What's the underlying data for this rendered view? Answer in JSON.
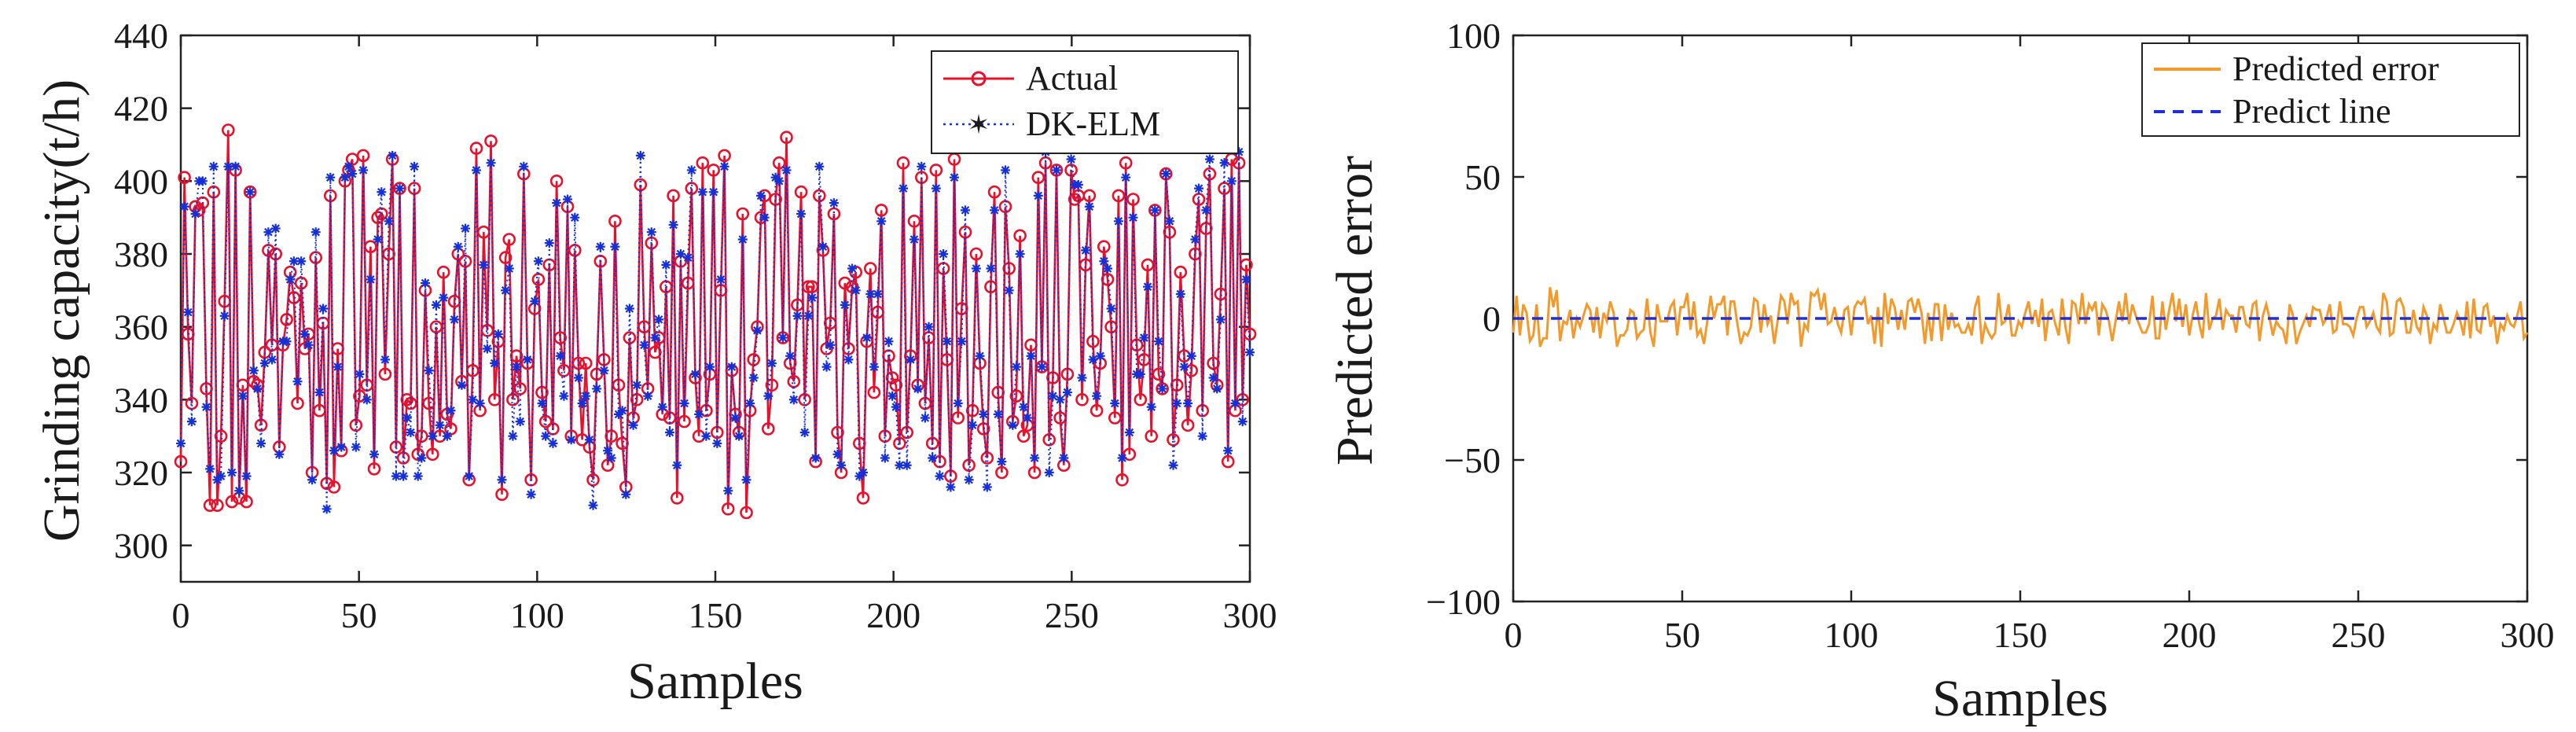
{
  "chart_data": [
    {
      "type": "line",
      "title": "",
      "xlabel": "Samples",
      "ylabel": "Grinding capacity(t/h)",
      "xlim": [
        0,
        300
      ],
      "ylim": [
        290,
        440
      ],
      "xticks": [
        0,
        50,
        100,
        150,
        200,
        250,
        300
      ],
      "yticks": [
        300,
        320,
        340,
        360,
        380,
        400,
        420,
        440
      ],
      "grid": false,
      "legend_position": "top-right",
      "series": [
        {
          "name": "Actual",
          "color": "#e8102a",
          "marker": "circle-open",
          "line": "solid",
          "values": [
            323,
            401,
            358,
            339,
            393,
            392,
            394,
            343,
            311,
            397,
            311,
            330,
            367,
            414,
            312,
            403,
            313,
            344,
            312,
            397,
            345,
            344,
            333,
            353,
            381,
            355,
            380,
            327,
            355,
            362,
            375,
            368,
            339,
            372,
            354,
            358,
            320,
            379,
            337,
            361,
            317,
            396,
            316,
            354,
            326,
            400,
            403,
            406,
            333,
            341,
            407,
            344,
            382,
            321,
            390,
            391,
            347,
            380,
            406,
            327,
            398,
            324,
            340,
            339,
            398,
            325,
            330,
            370,
            339,
            325,
            360,
            330,
            375,
            336,
            332,
            367,
            380,
            345,
            378,
            318,
            348,
            409,
            337,
            386,
            359,
            411,
            340,
            356,
            314,
            379,
            384,
            340,
            352,
            343,
            402,
            350,
            318,
            365,
            373,
            342,
            334,
            377,
            332,
            400,
            357,
            348,
            393,
            330,
            381,
            350,
            329,
            350,
            327,
            318,
            347,
            378,
            351,
            322,
            330,
            389,
            344,
            328,
            316,
            357,
            335,
            340,
            399,
            360,
            343,
            383,
            353,
            357,
            336,
            371,
            335,
            396,
            313,
            378,
            334,
            372,
            398,
            346,
            330,
            405,
            337,
            347,
            403,
            331,
            370,
            407,
            310,
            348,
            336,
            331,
            391,
            309,
            337,
            351,
            360,
            390,
            396,
            332,
            344,
            395,
            405,
            357,
            412,
            350,
            345,
            366,
            397,
            340,
            371,
            371,
            323,
            396,
            381,
            354,
            361,
            391,
            331,
            320,
            372,
            354,
            371,
            375,
            328,
            313,
            356,
            376,
            342,
            364,
            392,
            330,
            352,
            346,
            344,
            328,
            405,
            331,
            352,
            389,
            344,
            401,
            339,
            357,
            328,
            403,
            323,
            376,
            351,
            319,
            406,
            335,
            365,
            386,
            322,
            337,
            380,
            350,
            332,
            324,
            371,
            397,
            342,
            320,
            393,
            376,
            334,
            341,
            385,
            330,
            333,
            355,
            320,
            401,
            349,
            405,
            329,
            346,
            403,
            335,
            322,
            347,
            403,
            395,
            396,
            340,
            377,
            396,
            356,
            337,
            350,
            382,
            373,
            360,
            335,
            396,
            318,
            405,
            325,
            395,
            355,
            340,
            351,
            377,
            330,
            392,
            347,
            343,
            402,
            386,
            329,
            344,
            375,
            352,
            333,
            348,
            380,
            395,
            337,
            387,
            402,
            350,
            344,
            369,
            398,
            323,
            406,
            337,
            405,
            340,
            377,
            358
          ]
        },
        {
          "name": "DK-ELM",
          "color": "#1530d8",
          "marker": "star",
          "line": "dotted",
          "values": [
            328,
            393,
            364,
            334,
            391,
            400,
            400,
            338,
            321,
            404,
            318,
            319,
            363,
            404,
            320,
            404,
            315,
            341,
            319,
            397,
            348,
            343,
            328,
            350,
            386,
            351,
            387,
            325,
            356,
            356,
            373,
            378,
            345,
            378,
            358,
            355,
            318,
            386,
            342,
            365,
            310,
            401,
            326,
            349,
            327,
            401,
            404,
            402,
            327,
            347,
            403,
            340,
            373,
            325,
            384,
            397,
            351,
            389,
            407,
            319,
            398,
            319,
            335,
            331,
            404,
            319,
            324,
            372,
            348,
            330,
            366,
            333,
            368,
            330,
            337,
            362,
            382,
            344,
            387,
            319,
            340,
            403,
            339,
            377,
            354,
            405,
            350,
            358,
            318,
            370,
            376,
            330,
            349,
            334,
            404,
            351,
            314,
            367,
            378,
            339,
            330,
            383,
            328,
            394,
            352,
            341,
            395,
            329,
            390,
            346,
            339,
            341,
            329,
            311,
            343,
            382,
            348,
            326,
            324,
            382,
            336,
            337,
            314,
            365,
            333,
            344,
            407,
            355,
            341,
            386,
            357,
            362,
            338,
            377,
            331,
            388,
            322,
            380,
            339,
            379,
            403,
            347,
            336,
            397,
            330,
            349,
            397,
            328,
            373,
            404,
            315,
            349,
            335,
            330,
            384,
            318,
            339,
            346,
            359,
            396,
            390,
            341,
            350,
            401,
            400,
            357,
            403,
            352,
            340,
            363,
            391,
            331,
            363,
            368,
            324,
            404,
            382,
            349,
            355,
            394,
            325,
            322,
            366,
            351,
            376,
            370,
            319,
            320,
            357,
            369,
            349,
            369,
            389,
            324,
            356,
            341,
            338,
            322,
            398,
            322,
            351,
            384,
            343,
            404,
            335,
            360,
            324,
            398,
            319,
            380,
            356,
            316,
            401,
            339,
            356,
            392,
            318,
            333,
            376,
            352,
            336,
            316,
            376,
            392,
            336,
            323,
            403,
            370,
            333,
            349,
            380,
            338,
            335,
            352,
            324,
            396,
            349,
            408,
            320,
            341,
            403,
            340,
            324,
            342,
            406,
            399,
            399,
            346,
            381,
            393,
            351,
            341,
            352,
            378,
            376,
            365,
            339,
            389,
            324,
            401,
            331,
            390,
            347,
            347,
            357,
            371,
            338,
            392,
            356,
            343,
            402,
            389,
            322,
            339,
            369,
            349,
            339,
            352,
            384,
            398,
            330,
            392,
            406,
            346,
            343,
            362,
            405,
            326,
            400,
            339,
            408,
            334,
            373,
            353
          ]
        }
      ]
    },
    {
      "type": "line",
      "title": "",
      "xlabel": "Samples",
      "ylabel": "Predicted error",
      "xlim": [
        0,
        300
      ],
      "ylim": [
        -100,
        100
      ],
      "xticks": [
        0,
        50,
        100,
        150,
        200,
        250,
        300
      ],
      "yticks": [
        -100,
        -50,
        0,
        50,
        100
      ],
      "ytick_labels": [
        "−100",
        "−50",
        "0",
        "50",
        "100"
      ],
      "grid": false,
      "legend_position": "top-right",
      "series": [
        {
          "name": "Predicted error",
          "color": "#f39a2c",
          "line": "solid",
          "values": [
            -5,
            8,
            -6,
            5,
            2,
            -8,
            -6,
            5,
            -10,
            -7,
            -7,
            11,
            4,
            10,
            -8,
            -1,
            -2,
            3,
            -7,
            0,
            -3,
            1,
            5,
            3,
            -5,
            4,
            -7,
            2,
            -1,
            6,
            2,
            -10,
            -6,
            -6,
            -4,
            3,
            2,
            -7,
            -5,
            -4,
            7,
            -5,
            -10,
            5,
            -1,
            -1,
            -1,
            4,
            6,
            -6,
            4,
            4,
            9,
            -4,
            6,
            -6,
            -4,
            -9,
            -1,
            8,
            0,
            5,
            5,
            8,
            -6,
            6,
            6,
            -2,
            -9,
            -5,
            -6,
            -3,
            7,
            6,
            -5,
            5,
            -2,
            1,
            -9,
            -1,
            8,
            6,
            -2,
            9,
            5,
            6,
            -10,
            -2,
            -4,
            9,
            8,
            10,
            3,
            9,
            -2,
            -1,
            4,
            -2,
            -5,
            3,
            4,
            -6,
            4,
            6,
            5,
            7,
            -2,
            1,
            -9,
            4,
            -10,
            9,
            -2,
            7,
            4,
            -4,
            3,
            -4,
            6,
            7,
            2,
            7,
            2,
            -9,
            2,
            -8,
            5,
            5,
            -8,
            5,
            -4,
            2,
            -3,
            -2,
            -5,
            -5,
            -2,
            -6,
            4,
            8,
            -9,
            -2,
            -5,
            -7,
            -5,
            9,
            -2,
            -1,
            5,
            -6,
            -6,
            -1,
            -3,
            2,
            6,
            -2,
            3,
            -3,
            7,
            -8,
            2,
            3,
            -2,
            -6,
            7,
            -3,
            -9,
            6,
            5,
            -2,
            9,
            -2,
            5,
            3,
            6,
            -6,
            5,
            3,
            -1,
            -8,
            -1,
            6,
            -1,
            9,
            -2,
            5,
            1,
            -2,
            -5,
            -5,
            -2,
            8,
            -7,
            -7,
            6,
            -4,
            3,
            9,
            -1,
            7,
            -3,
            5,
            -6,
            1,
            6,
            -2,
            -7,
            9,
            -4,
            0,
            1,
            7,
            -4,
            3,
            1,
            1,
            -5,
            4,
            4,
            -2,
            -3,
            5,
            6,
            -8,
            1,
            5,
            0,
            -6,
            -1,
            -3,
            -4,
            -9,
            5,
            1,
            -9,
            -5,
            -2,
            1,
            -3,
            4,
            3,
            3,
            -2,
            0,
            5,
            -5,
            -4,
            6,
            -2,
            -2,
            -3,
            -6,
            0,
            4,
            4,
            -3,
            -1,
            2,
            -3,
            -5,
            9,
            6,
            -6,
            -5,
            6,
            7,
            4,
            -5,
            -5,
            3,
            -3,
            -5,
            4,
            1,
            -9,
            -2,
            -4,
            5,
            0,
            -5,
            -5,
            -2,
            2,
            -1,
            -6,
            6,
            -7,
            7,
            -4,
            -5,
            4,
            5,
            -3,
            1,
            -9,
            -2,
            -4,
            1,
            -2,
            -3,
            1,
            6,
            -7,
            -5
          ]
        },
        {
          "name": "Predict line",
          "color": "#1f2fe0",
          "line": "dashed",
          "values": [
            0,
            0
          ]
        }
      ]
    }
  ]
}
